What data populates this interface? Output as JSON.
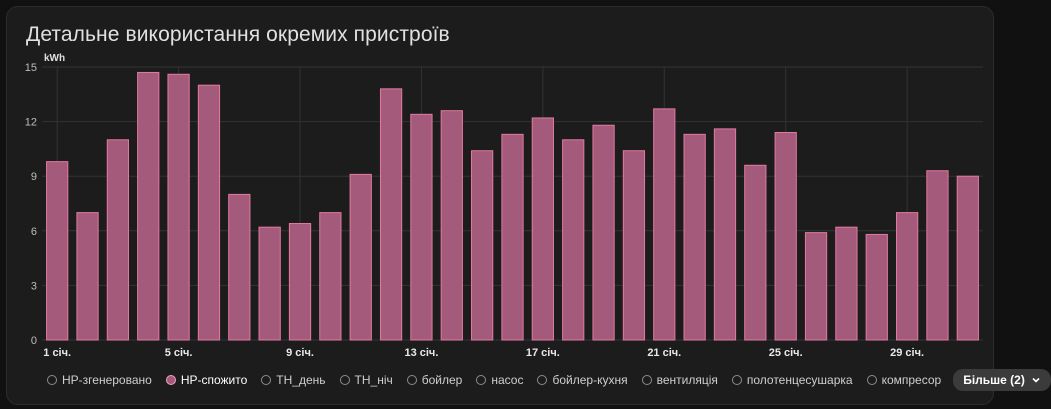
{
  "card": {
    "title": "Детальне використання окремих пристроїв"
  },
  "chart_data": {
    "type": "bar",
    "ylabel": "kWh",
    "ylim": [
      0,
      15
    ],
    "yticks": [
      0,
      3,
      6,
      9,
      12,
      15
    ],
    "grid": true,
    "legend_position": "bottom",
    "categories": [
      "1 січ.",
      "2 січ.",
      "3 січ.",
      "4 січ.",
      "5 січ.",
      "6 січ.",
      "7 січ.",
      "8 січ.",
      "9 січ.",
      "10 січ.",
      "11 січ.",
      "12 січ.",
      "13 січ.",
      "14 січ.",
      "15 січ.",
      "16 січ.",
      "17 січ.",
      "18 січ.",
      "19 січ.",
      "20 січ.",
      "21 січ.",
      "22 січ.",
      "23 січ.",
      "24 січ.",
      "25 січ.",
      "26 січ.",
      "27 січ.",
      "28 січ.",
      "29 січ.",
      "30 січ.",
      "31 січ."
    ],
    "xtick_labels": [
      "1 січ.",
      "5 січ.",
      "9 січ.",
      "13 січ.",
      "17 січ.",
      "21 січ.",
      "25 січ.",
      "29 січ."
    ],
    "series": [
      {
        "name": "НР-спожито",
        "color": "#a35a7b",
        "values": [
          9.8,
          7.0,
          11.0,
          14.7,
          14.6,
          14.0,
          8.0,
          6.2,
          6.4,
          7.0,
          9.1,
          13.8,
          12.4,
          12.6,
          10.4,
          11.3,
          12.2,
          11.0,
          11.8,
          10.4,
          12.7,
          11.3,
          11.6,
          9.6,
          11.4,
          5.9,
          6.2,
          5.8,
          7.0,
          9.3,
          9.0
        ]
      }
    ]
  },
  "legend": {
    "items": [
      {
        "label": "НР-згенеровано",
        "active": false
      },
      {
        "label": "НР-спожито",
        "active": true
      },
      {
        "label": "ТН_день",
        "active": false
      },
      {
        "label": "ТН_ніч",
        "active": false
      },
      {
        "label": "бойлер",
        "active": false
      },
      {
        "label": "насос",
        "active": false
      },
      {
        "label": "бойлер-кухня",
        "active": false
      },
      {
        "label": "вентиляція",
        "active": false
      },
      {
        "label": "полотенцесушарка",
        "active": false
      },
      {
        "label": "компресор",
        "active": false
      }
    ],
    "more_label": "Більше (2)"
  },
  "colors": {
    "bar_fill": "#a35a7b",
    "bar_stroke": "#e3799f",
    "grid": "#333333",
    "tick_text": "#bdbdbd"
  }
}
